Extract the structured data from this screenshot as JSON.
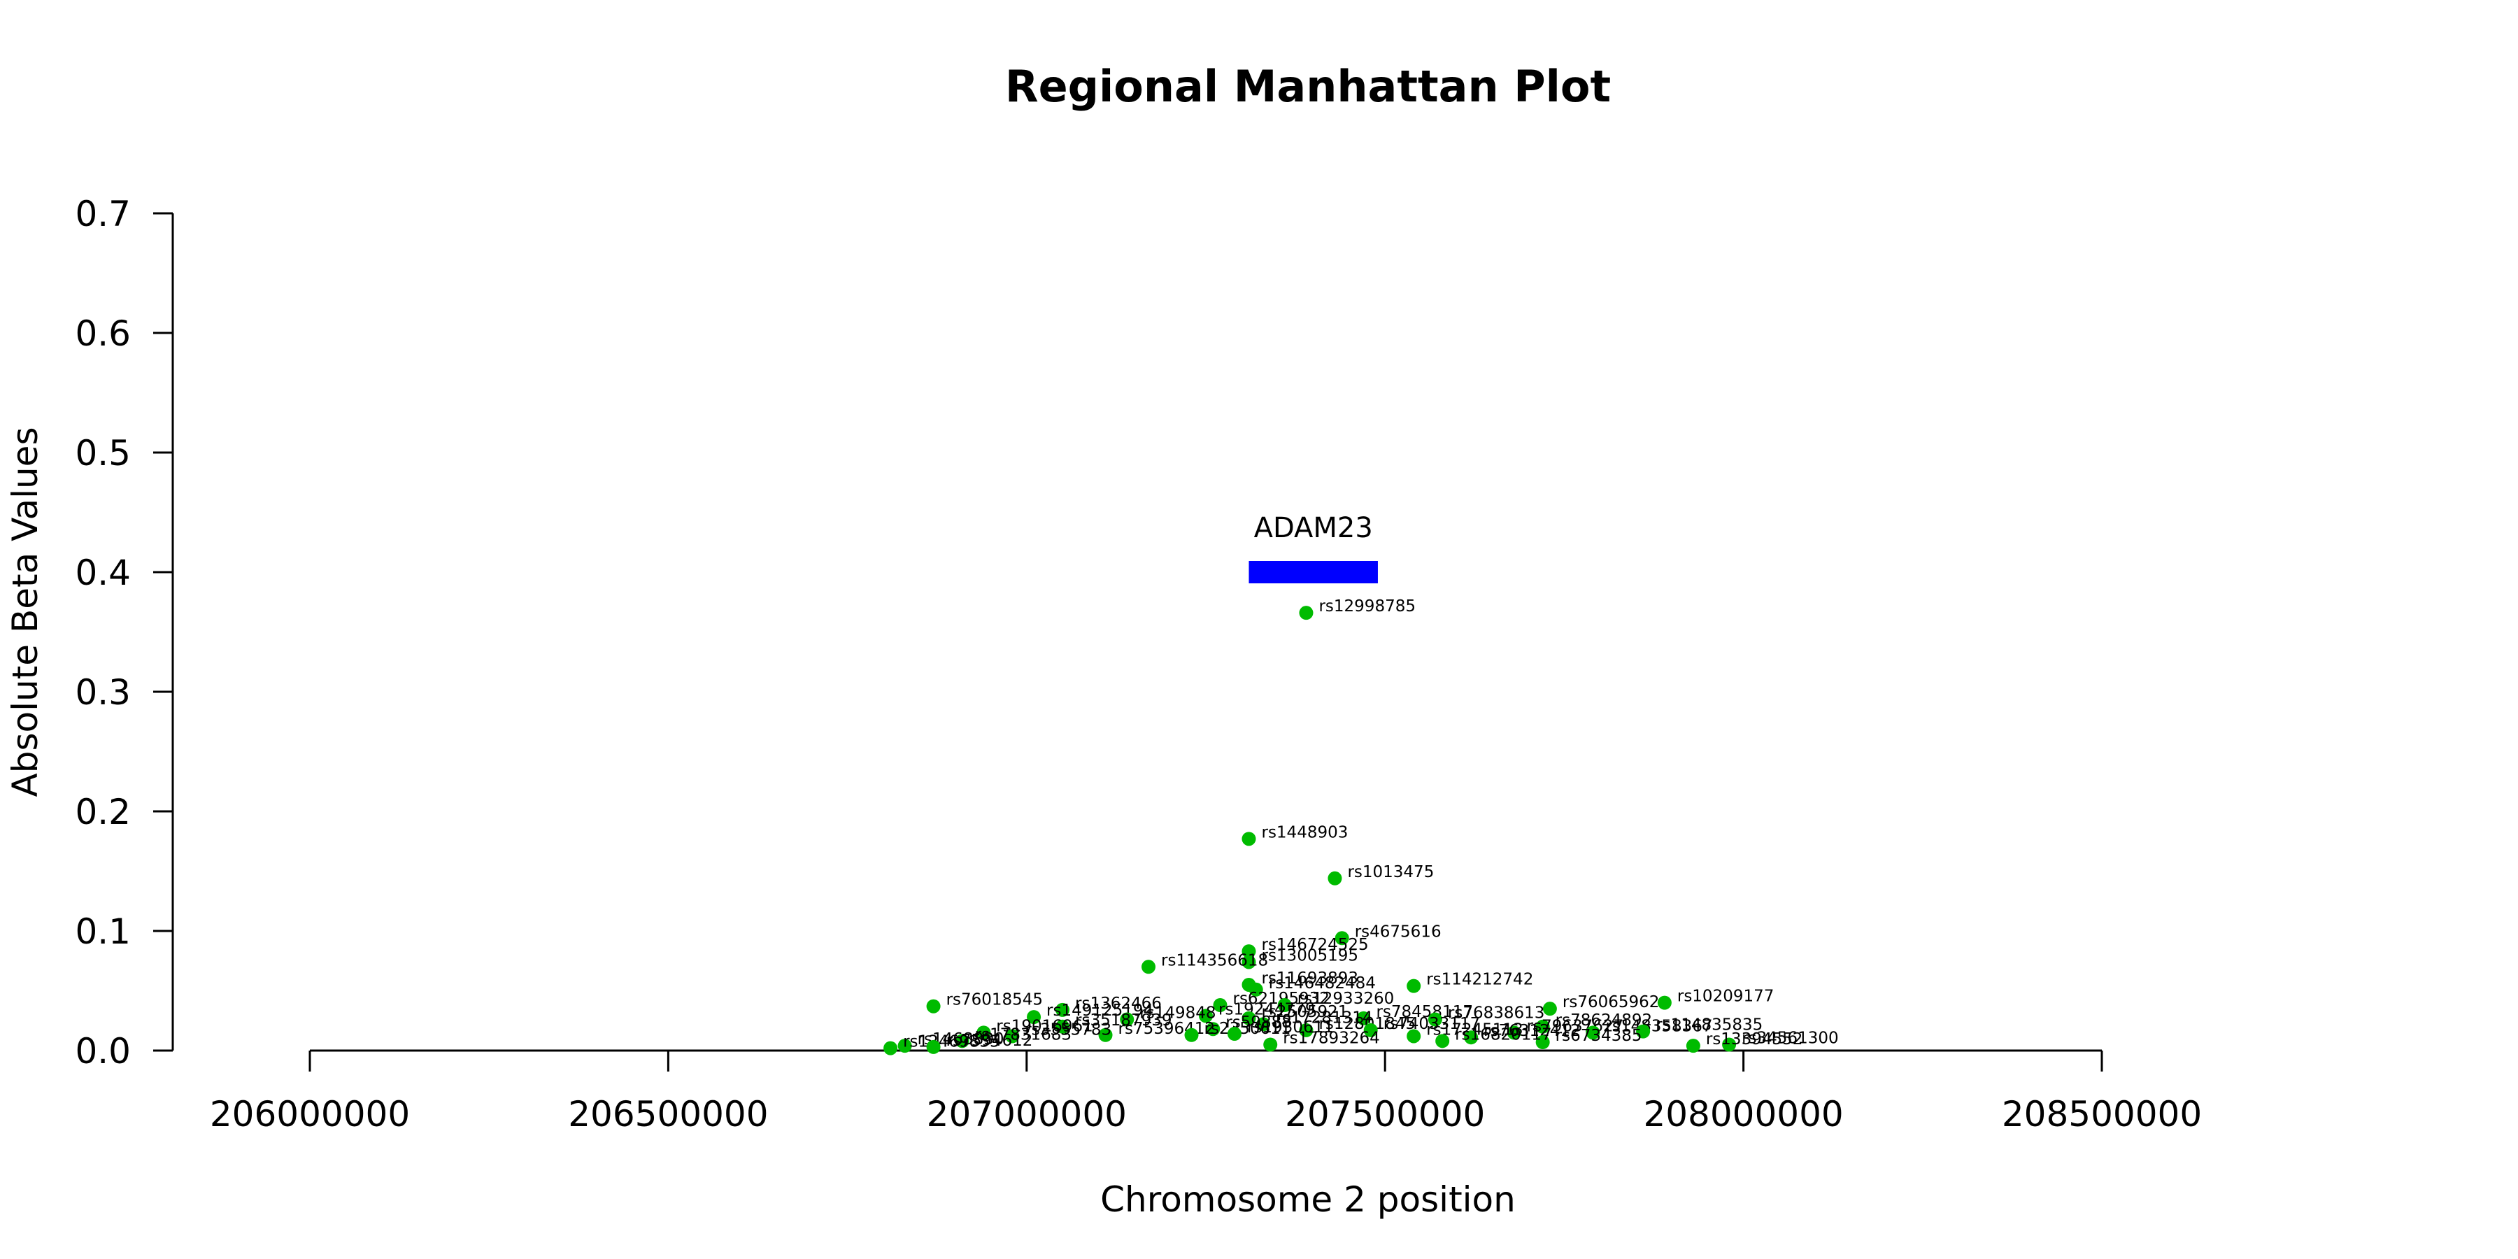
{
  "chart_data": {
    "type": "scatter",
    "title": "Regional Manhattan Plot",
    "xlabel": "Chromosome 2 position",
    "ylabel": "Absolute Beta Values",
    "xlim": [
      206000000,
      208500000
    ],
    "ylim": [
      0,
      0.7
    ],
    "x_ticks": [
      "206000000",
      "206500000",
      "207000000",
      "207500000",
      "208000000",
      "208500000"
    ],
    "y_ticks": [
      "0.0",
      "0.1",
      "0.2",
      "0.3",
      "0.4",
      "0.5",
      "0.6",
      "0.7"
    ],
    "point_color": "#00bb00",
    "gene_color": "#0000ff",
    "genes": [
      {
        "name": "ADAM23",
        "start": 207310000,
        "end": 207490000,
        "y": 0.4
      }
    ],
    "points": [
      {
        "x": 207390000,
        "y": 0.366,
        "label": "rs12998785"
      },
      {
        "x": 207310000,
        "y": 0.177,
        "label": "rs1448903"
      },
      {
        "x": 207430000,
        "y": 0.144,
        "label": "rs1013475"
      },
      {
        "x": 207440000,
        "y": 0.094,
        "label": "rs4675616"
      },
      {
        "x": 207310000,
        "y": 0.083,
        "label": "rs146724525"
      },
      {
        "x": 207310000,
        "y": 0.074,
        "label": "rs13005195"
      },
      {
        "x": 207170000,
        "y": 0.07,
        "label": "rs114356618"
      },
      {
        "x": 207540000,
        "y": 0.054,
        "label": "rs114212742"
      },
      {
        "x": 207310000,
        "y": 0.055,
        "label": "rs11693893"
      },
      {
        "x": 207320000,
        "y": 0.051,
        "label": "rs146482484"
      },
      {
        "x": 207890000,
        "y": 0.04,
        "label": "rs10209177"
      },
      {
        "x": 206870000,
        "y": 0.037,
        "label": "rs76018545"
      },
      {
        "x": 207730000,
        "y": 0.035,
        "label": "rs76065962"
      },
      {
        "x": 207270000,
        "y": 0.038,
        "label": "rs62195932"
      },
      {
        "x": 207360000,
        "y": 0.038,
        "label": "rs12933260"
      },
      {
        "x": 207050000,
        "y": 0.034,
        "label": "rs1362466"
      },
      {
        "x": 207010000,
        "y": 0.028,
        "label": "rs149125194"
      },
      {
        "x": 207470000,
        "y": 0.027,
        "label": "rs78458117"
      },
      {
        "x": 207570000,
        "y": 0.026,
        "label": "rs76838613"
      },
      {
        "x": 207250000,
        "y": 0.029,
        "label": "rs19244779"
      },
      {
        "x": 207310000,
        "y": 0.027,
        "label": "rs2505921"
      },
      {
        "x": 207140000,
        "y": 0.026,
        "label": "rs149848"
      },
      {
        "x": 207720000,
        "y": 0.02,
        "label": "rs78624892"
      },
      {
        "x": 207050000,
        "y": 0.02,
        "label": "rs35187939"
      },
      {
        "x": 207330000,
        "y": 0.022,
        "label": "rs17281314"
      },
      {
        "x": 207260000,
        "y": 0.018,
        "label": "rs59888"
      },
      {
        "x": 207390000,
        "y": 0.017,
        "label": "rs12801845"
      },
      {
        "x": 207480000,
        "y": 0.017,
        "label": "rs74033117"
      },
      {
        "x": 207680000,
        "y": 0.015,
        "label": "rs79637627"
      },
      {
        "x": 207790000,
        "y": 0.015,
        "label": "rs148358367"
      },
      {
        "x": 207860000,
        "y": 0.016,
        "label": "rs114835835"
      },
      {
        "x": 206940000,
        "y": 0.015,
        "label": "rs19016961"
      },
      {
        "x": 207110000,
        "y": 0.013,
        "label": "rs75396412"
      },
      {
        "x": 207230000,
        "y": 0.013,
        "label": "rs2350611"
      },
      {
        "x": 207540000,
        "y": 0.012,
        "label": "rs17245113"
      },
      {
        "x": 207620000,
        "y": 0.011,
        "label": "rs76312412"
      },
      {
        "x": 206980000,
        "y": 0.012,
        "label": "rs3555783"
      },
      {
        "x": 207290000,
        "y": 0.014,
        "label": "rs1930611"
      },
      {
        "x": 207720000,
        "y": 0.007,
        "label": "rs6734385"
      },
      {
        "x": 206910000,
        "y": 0.008,
        "label": "rs17831683"
      },
      {
        "x": 207340000,
        "y": 0.005,
        "label": "rs17893264"
      },
      {
        "x": 207580000,
        "y": 0.008,
        "label": "rs16820117"
      },
      {
        "x": 207980000,
        "y": 0.005,
        "label": "rs34561300"
      },
      {
        "x": 207930000,
        "y": 0.004,
        "label": "rs13394552"
      },
      {
        "x": 206830000,
        "y": 0.004,
        "label": "rs1468830"
      },
      {
        "x": 206810000,
        "y": 0.002,
        "label": "rs12469855"
      },
      {
        "x": 206870000,
        "y": 0.003,
        "label": "rs7594612"
      }
    ]
  }
}
